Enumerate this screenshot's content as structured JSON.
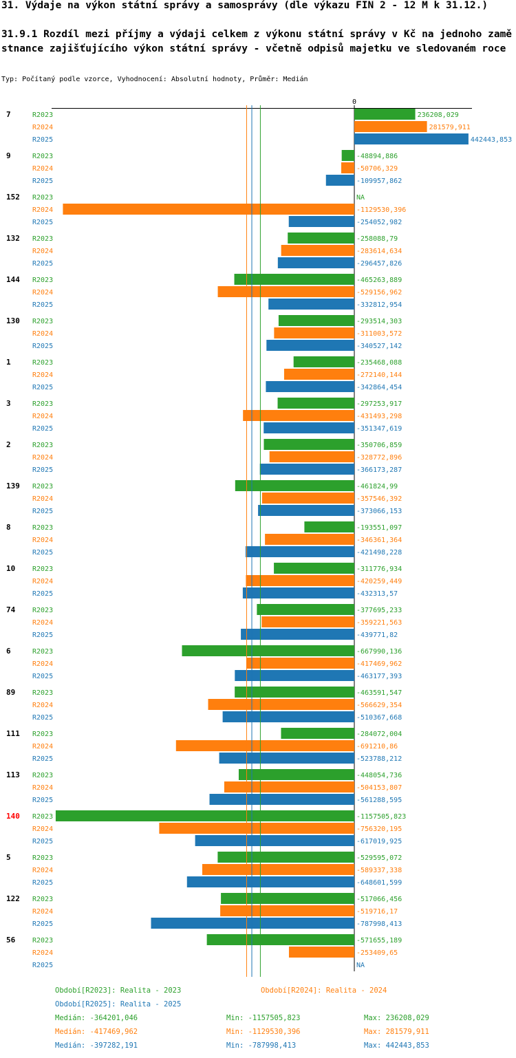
{
  "title": "31. Výdaje na výkon státní správy a samosprávy (dle výkazu FIN 2 - 12 M k 31.12.)",
  "subtitle": "31.9.1 Rozdíl mezi příjmy a výdaji celkem z výkonu státní správy v Kč na jednoho zaměstnance zajišťujícího výkon státní správy - včetně odpisů majetku ve sledovaném roce",
  "type_line": "Typ: Počítaný podle vzorce, Vyhodnocení: Absolutní hodnoty, Průměr: Medián",
  "colors": {
    "R2023": "#2ca02c",
    "R2024": "#ff7f0e",
    "R2025": "#1f77b4",
    "highlight": "#ff0000",
    "axis": "#000000"
  },
  "chart_data": {
    "type": "bar",
    "orientation": "horizontal",
    "zero_label": "0",
    "series_names": [
      "R2023",
      "R2024",
      "R2025"
    ],
    "groups": [
      {
        "label": "7",
        "highlight": false,
        "values": [
          236208.029,
          281579.911,
          442443.853
        ],
        "labels": [
          "236208,029",
          "281579,911",
          "442443,853"
        ]
      },
      {
        "label": "9",
        "highlight": false,
        "values": [
          -48894.886,
          -50706.329,
          -109957.862
        ],
        "labels": [
          "-48894,886",
          "-50706,329",
          "-109957,862"
        ]
      },
      {
        "label": "152",
        "highlight": false,
        "values": [
          null,
          -1129530.396,
          -254052.982
        ],
        "labels": [
          "NA",
          "-1129530,396",
          "-254052,982"
        ]
      },
      {
        "label": "132",
        "highlight": false,
        "values": [
          -258088.79,
          -283614.634,
          -296457.826
        ],
        "labels": [
          "-258088,79",
          "-283614,634",
          "-296457,826"
        ]
      },
      {
        "label": "144",
        "highlight": false,
        "values": [
          -465263.889,
          -529156.962,
          -332812.954
        ],
        "labels": [
          "-465263,889",
          "-529156,962",
          "-332812,954"
        ]
      },
      {
        "label": "130",
        "highlight": false,
        "values": [
          -293514.303,
          -311003.572,
          -340527.142
        ],
        "labels": [
          "-293514,303",
          "-311003,572",
          "-340527,142"
        ]
      },
      {
        "label": "1",
        "highlight": false,
        "values": [
          -235468.088,
          -272140.144,
          -342864.454
        ],
        "labels": [
          "-235468,088",
          "-272140,144",
          "-342864,454"
        ]
      },
      {
        "label": "3",
        "highlight": false,
        "values": [
          -297253.917,
          -431493.298,
          -351347.619
        ],
        "labels": [
          "-297253,917",
          "-431493,298",
          "-351347,619"
        ]
      },
      {
        "label": "2",
        "highlight": false,
        "values": [
          -350706.859,
          -328772.896,
          -366173.287
        ],
        "labels": [
          "-350706,859",
          "-328772,896",
          "-366173,287"
        ]
      },
      {
        "label": "139",
        "highlight": false,
        "values": [
          -461824.99,
          -357546.392,
          -373066.153
        ],
        "labels": [
          "-461824,99",
          "-357546,392",
          "-373066,153"
        ]
      },
      {
        "label": "8",
        "highlight": false,
        "values": [
          -193551.097,
          -346361.364,
          -421498.228
        ],
        "labels": [
          "-193551,097",
          "-346361,364",
          "-421498,228"
        ]
      },
      {
        "label": "10",
        "highlight": false,
        "values": [
          -311776.934,
          -420259.449,
          -432313.57
        ],
        "labels": [
          "-311776,934",
          "-420259,449",
          "-432313,57"
        ]
      },
      {
        "label": "74",
        "highlight": false,
        "values": [
          -377695.233,
          -359221.563,
          -439771.82
        ],
        "labels": [
          "-377695,233",
          "-359221,563",
          "-439771,82"
        ]
      },
      {
        "label": "6",
        "highlight": false,
        "values": [
          -667990.136,
          -417469.962,
          -463177.393
        ],
        "labels": [
          "-667990,136",
          "-417469,962",
          "-463177,393"
        ]
      },
      {
        "label": "89",
        "highlight": false,
        "values": [
          -463591.547,
          -566629.354,
          -510367.668
        ],
        "labels": [
          "-463591,547",
          "-566629,354",
          "-510367,668"
        ]
      },
      {
        "label": "111",
        "highlight": false,
        "values": [
          -284072.004,
          -691210.86,
          -523788.212
        ],
        "labels": [
          "-284072,004",
          "-691210,86",
          "-523788,212"
        ]
      },
      {
        "label": "113",
        "highlight": false,
        "values": [
          -448054.736,
          -504153.807,
          -561288.595
        ],
        "labels": [
          "-448054,736",
          "-504153,807",
          "-561288,595"
        ]
      },
      {
        "label": "140",
        "highlight": true,
        "values": [
          -1157505.823,
          -756320.195,
          -617019.925
        ],
        "labels": [
          "-1157505,823",
          "-756320,195",
          "-617019,925"
        ]
      },
      {
        "label": "5",
        "highlight": false,
        "values": [
          -529595.072,
          -589337.338,
          -648601.599
        ],
        "labels": [
          "-529595,072",
          "-589337,338",
          "-648601,599"
        ]
      },
      {
        "label": "122",
        "highlight": false,
        "values": [
          -517066.456,
          -519716.17,
          -787998.413
        ],
        "labels": [
          "-517066,456",
          "-519716,17",
          "-787998,413"
        ]
      },
      {
        "label": "56",
        "highlight": false,
        "values": [
          -571655.189,
          -253409.65,
          null
        ],
        "labels": [
          "-571655,189",
          "-253409,65",
          "NA"
        ]
      }
    ],
    "medians": [
      -364201.046,
      -417469.962,
      -397282.191
    ]
  },
  "legend": {
    "period_R2023": "Období[R2023]: Realita - 2023",
    "period_R2024": "Období[R2024]: Realita - 2024",
    "period_R2025": "Období[R2025]: Realita - 2025",
    "stats": [
      {
        "median": "Medián: -364201,046",
        "min": "Min: -1157505,823",
        "max": "Max: 236208,029"
      },
      {
        "median": "Medián: -417469,962",
        "min": "Min: -1129530,396",
        "max": "Max: 281579,911"
      },
      {
        "median": "Medián: -397282,191",
        "min": "Min: -787998,413",
        "max": "Max: 442443,853"
      }
    ]
  }
}
